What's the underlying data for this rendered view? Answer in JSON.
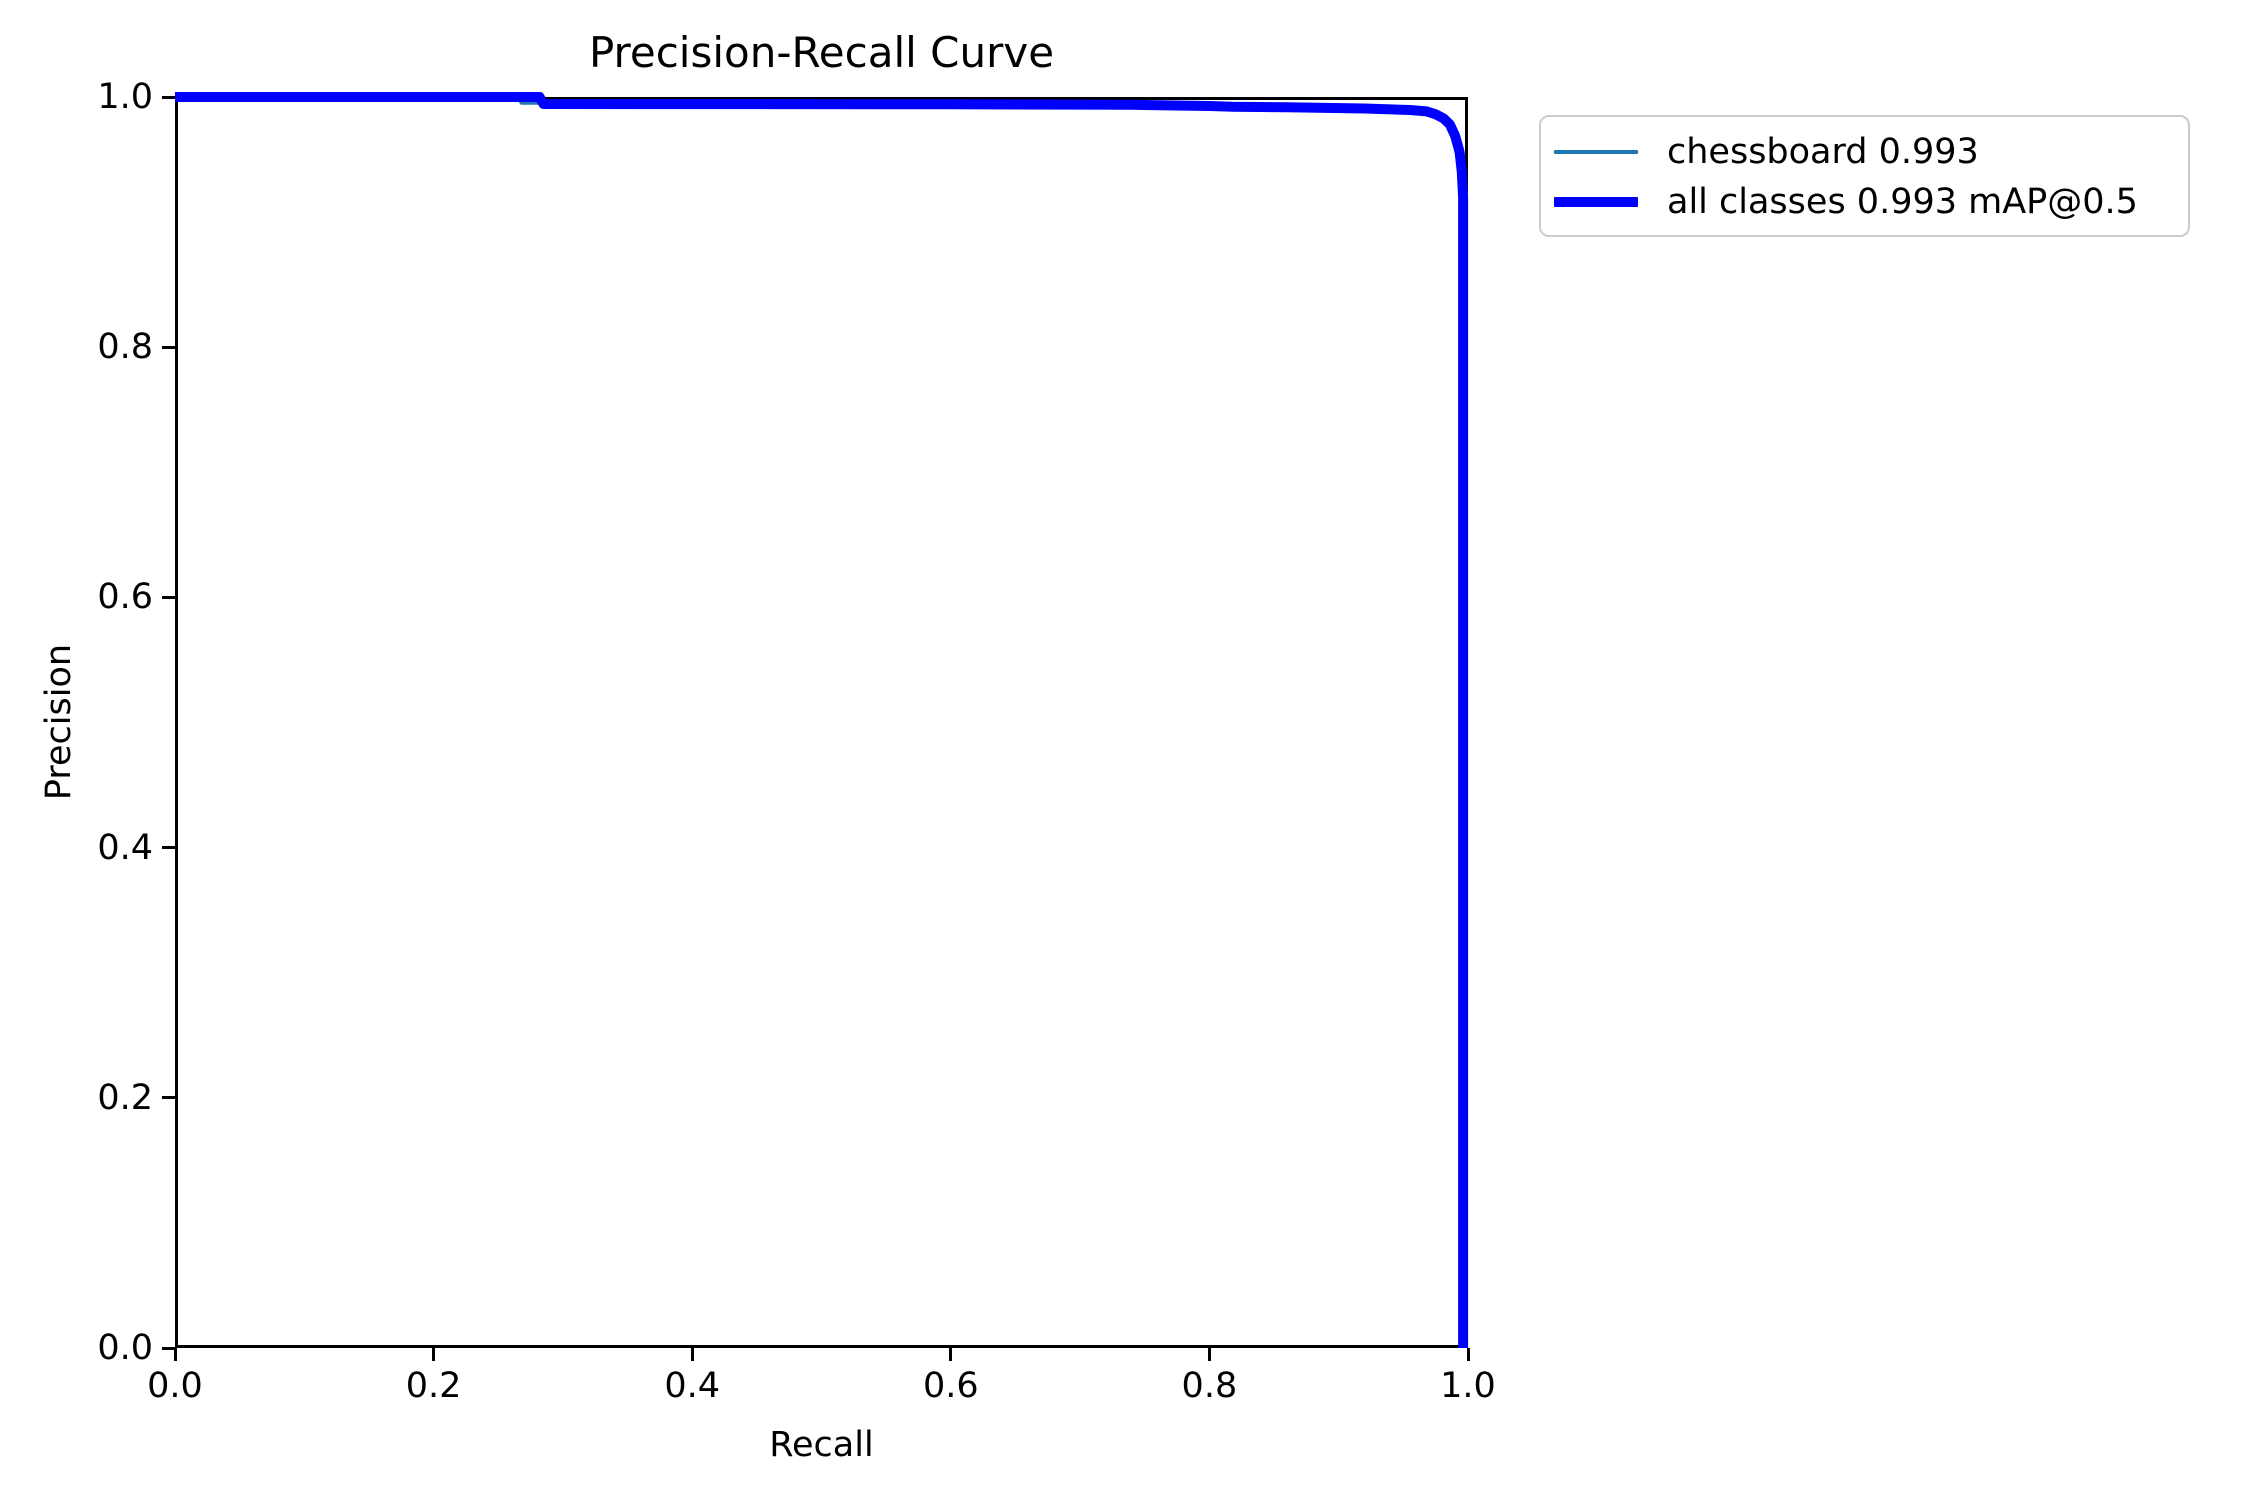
{
  "title": "Precision-Recall Curve",
  "xlabel": "Recall",
  "ylabel": "Precision",
  "axes": {
    "xtick_labels": [
      "0.0",
      "0.2",
      "0.4",
      "0.6",
      "0.8",
      "1.0"
    ],
    "ytick_labels": [
      "0.0",
      "0.2",
      "0.4",
      "0.6",
      "0.8",
      "1.0"
    ],
    "spine_color": "#000000"
  },
  "legend": {
    "items": [
      {
        "label": "chessboard 0.993",
        "color": "#1f77b4",
        "thickness": 3.5
      },
      {
        "label": "all classes 0.993 mAP@0.5",
        "color": "#0000ff",
        "thickness": 10
      }
    ]
  },
  "chart_data": {
    "type": "line",
    "title": "Precision-Recall Curve",
    "xlabel": "Recall",
    "ylabel": "Precision",
    "xlim": [
      0.0,
      1.0
    ],
    "ylim": [
      0.0,
      1.0
    ],
    "xticks": [
      0.0,
      0.2,
      0.4,
      0.6,
      0.8,
      1.0
    ],
    "yticks": [
      0.0,
      0.2,
      0.4,
      0.6,
      0.8,
      1.0
    ],
    "grid": false,
    "legend_position": "outside-upper-right",
    "series": [
      {
        "name": "chessboard 0.993",
        "color": "#1f77b4",
        "linewidth": 3.5,
        "points": [
          [
            0.0,
            1.0
          ],
          [
            0.265,
            1.0
          ],
          [
            0.268,
            0.9952
          ],
          [
            0.6,
            0.9948
          ],
          [
            0.74,
            0.9944
          ],
          [
            0.8,
            0.9932
          ],
          [
            0.86,
            0.9922
          ],
          [
            0.92,
            0.991
          ],
          [
            0.955,
            0.9898
          ],
          [
            0.968,
            0.9886
          ],
          [
            0.975,
            0.9866
          ],
          [
            0.981,
            0.9836
          ],
          [
            0.986,
            0.9786
          ],
          [
            0.99,
            0.9695
          ],
          [
            0.9935,
            0.9565
          ],
          [
            0.9952,
            0.9405
          ],
          [
            0.9958,
            0.92
          ],
          [
            0.9958,
            0.0
          ]
        ]
      },
      {
        "name": "all classes 0.993 mAP@0.5",
        "color": "#0000ff",
        "linewidth": 10,
        "points": [
          [
            0.0,
            1.0
          ],
          [
            0.282,
            1.0
          ],
          [
            0.285,
            0.9944
          ],
          [
            0.6,
            0.9942
          ],
          [
            0.74,
            0.9938
          ],
          [
            0.8,
            0.9928
          ],
          [
            0.818,
            0.9922
          ],
          [
            0.86,
            0.9918
          ],
          [
            0.92,
            0.9908
          ],
          [
            0.955,
            0.9896
          ],
          [
            0.968,
            0.9885
          ],
          [
            0.975,
            0.9862
          ],
          [
            0.981,
            0.983
          ],
          [
            0.986,
            0.978
          ],
          [
            0.99,
            0.969
          ],
          [
            0.9935,
            0.956
          ],
          [
            0.9952,
            0.94
          ],
          [
            0.9962,
            0.92
          ],
          [
            0.9962,
            0.0
          ]
        ]
      }
    ]
  }
}
